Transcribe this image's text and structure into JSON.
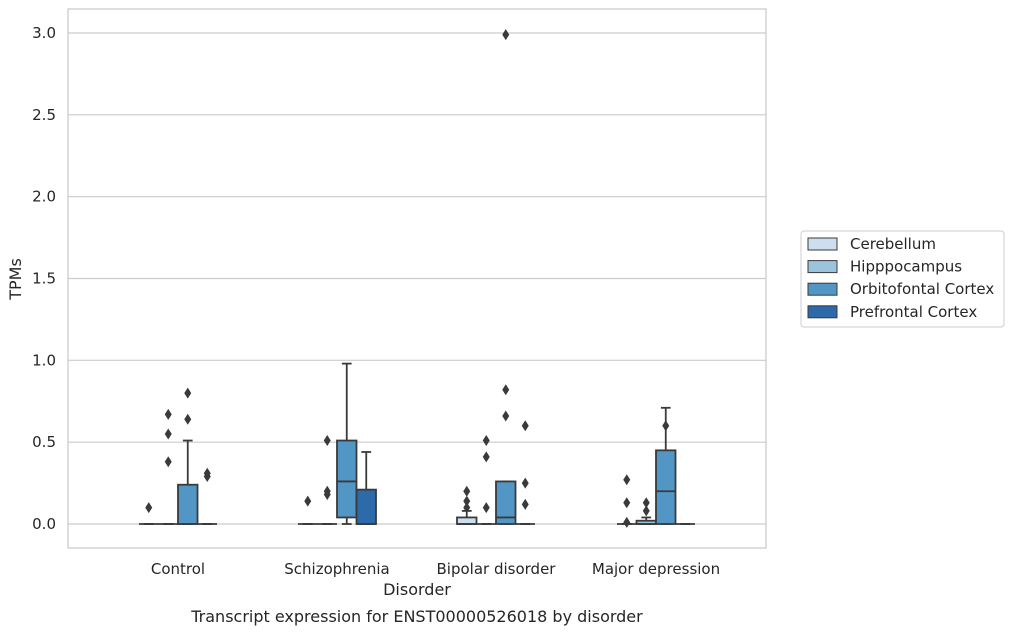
{
  "chart_data": {
    "type": "box",
    "xlabel": "Disorder",
    "ylabel": "TPMs",
    "caption": "Transcript expression for ENST00000526018 by disorder",
    "ylim": [
      -0.15,
      3.15
    ],
    "y_ticks": [
      "0.0",
      "0.5",
      "1.0",
      "1.5",
      "2.0",
      "2.5",
      "3.0"
    ],
    "y_tick_values": [
      0.0,
      0.5,
      1.0,
      1.5,
      2.0,
      2.5,
      3.0
    ],
    "grid": "horizontal",
    "legend_position": "right",
    "categories": [
      "Control",
      "Schizophrenia",
      "Bipolar disorder",
      "Major depression"
    ],
    "series": [
      {
        "name": "Cerebellum",
        "color": "#cddfef",
        "boxes": [
          {
            "q1": 0,
            "median": 0,
            "q3": 0,
            "whisker_low": 0,
            "whisker_high": 0,
            "outliers": [
              0.1
            ]
          },
          {
            "q1": 0,
            "median": 0,
            "q3": 0,
            "whisker_low": 0,
            "whisker_high": 0,
            "outliers": [
              0.14
            ]
          },
          {
            "q1": 0,
            "median": 0,
            "q3": 0.04,
            "whisker_low": 0,
            "whisker_high": 0.08,
            "outliers": [
              0.1,
              0.14,
              0.2
            ]
          },
          {
            "q1": 0,
            "median": 0,
            "q3": 0,
            "whisker_low": 0,
            "whisker_high": 0,
            "outliers": [
              0.01,
              0.13,
              0.27
            ]
          }
        ]
      },
      {
        "name": "Hipppocampus",
        "color": "#9cc3dd",
        "boxes": [
          {
            "q1": 0,
            "median": 0,
            "q3": 0,
            "whisker_low": 0,
            "whisker_high": 0,
            "outliers": [
              0.38,
              0.55,
              0.67
            ]
          },
          {
            "q1": 0,
            "median": 0,
            "q3": 0,
            "whisker_low": 0,
            "whisker_high": 0,
            "outliers": [
              0.18,
              0.2,
              0.51
            ]
          },
          {
            "q1": 0,
            "median": 0,
            "q3": 0,
            "whisker_low": 0,
            "whisker_high": 0,
            "outliers": [
              0.1,
              0.41,
              0.51
            ]
          },
          {
            "q1": 0,
            "median": 0,
            "q3": 0.02,
            "whisker_low": 0,
            "whisker_high": 0.04,
            "outliers": [
              0.08,
              0.13
            ]
          }
        ]
      },
      {
        "name": "Orbitofontal Cortex",
        "color": "#5296c6",
        "boxes": [
          {
            "q1": 0,
            "median": 0,
            "q3": 0.24,
            "whisker_low": 0,
            "whisker_high": 0.51,
            "outliers": [
              0.64,
              0.8
            ]
          },
          {
            "q1": 0.04,
            "median": 0.26,
            "q3": 0.51,
            "whisker_low": 0,
            "whisker_high": 0.98,
            "outliers": []
          },
          {
            "q1": 0,
            "median": 0.04,
            "q3": 0.26,
            "whisker_low": 0,
            "whisker_high": 0.26,
            "outliers": [
              0.66,
              0.82,
              2.99
            ]
          },
          {
            "q1": 0,
            "median": 0.2,
            "q3": 0.45,
            "whisker_low": 0,
            "whisker_high": 0.71,
            "outliers": [
              0.6
            ]
          }
        ]
      },
      {
        "name": "Prefrontal Cortex",
        "color": "#2c6aaa",
        "boxes": [
          {
            "q1": 0,
            "median": 0,
            "q3": 0,
            "whisker_low": 0,
            "whisker_high": 0,
            "outliers": [
              0.29,
              0.31
            ]
          },
          {
            "q1": 0,
            "median": 0,
            "q3": 0.21,
            "whisker_low": 0,
            "whisker_high": 0.44,
            "outliers": []
          },
          {
            "q1": 0,
            "median": 0,
            "q3": 0,
            "whisker_low": 0,
            "whisker_high": 0,
            "outliers": [
              0.12,
              0.25,
              0.6
            ]
          },
          {
            "q1": 0,
            "median": 0,
            "q3": 0,
            "whisker_low": 0,
            "whisker_high": 0,
            "outliers": []
          }
        ]
      }
    ]
  }
}
